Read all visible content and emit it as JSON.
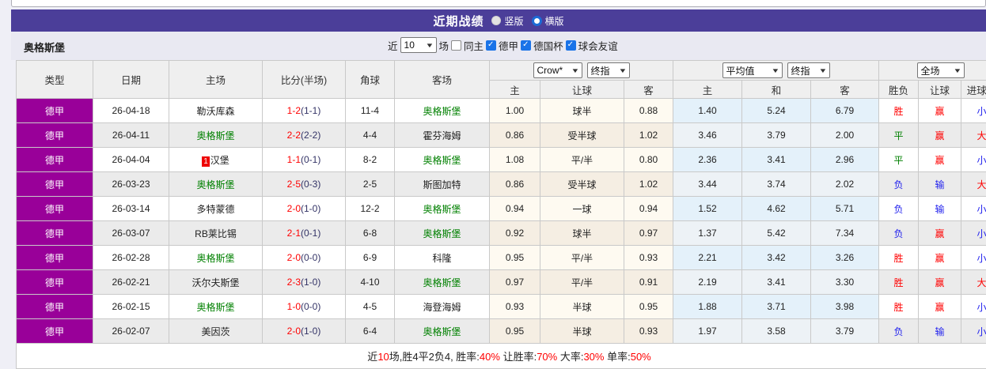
{
  "colors": {
    "bar_purple": "#4B3E99",
    "type_magenta": "#990099",
    "focus_green": "#008000",
    "win_red": "#FF0000",
    "loss_blue": "#2222EE",
    "band_lavender": "#E9E9F2"
  },
  "header": {
    "title": "近期战绩",
    "radio_vertical": "竖版",
    "radio_horizontal": "横版",
    "selected": "横版"
  },
  "filter": {
    "team": "奥格斯堡",
    "near_label": "近",
    "matches_value": "10",
    "matches_unit": "场",
    "same_home_label": "同主",
    "same_home_checked": false,
    "leagues": [
      {
        "label": "德甲",
        "checked": true
      },
      {
        "label": "德国杯",
        "checked": true
      },
      {
        "label": "球会友谊",
        "checked": true
      }
    ]
  },
  "table": {
    "main_headers": [
      "类型",
      "日期",
      "主场",
      "比分(半场)",
      "角球",
      "客场"
    ],
    "selects": {
      "company": "Crow*",
      "final1": "终指",
      "average": "平均值",
      "final2": "终指",
      "scope": "全场"
    },
    "sub_headers": [
      "主",
      "让球",
      "客",
      "主",
      "和",
      "客",
      "胜负",
      "让球",
      "进球数"
    ],
    "rows": [
      {
        "league": "德甲",
        "date": "26-04-18",
        "home": "勒沃库森",
        "home_badge": "",
        "score": "1-2",
        "half": "(1-1)",
        "corner": "11-4",
        "away": "奥格斯堡",
        "away_badge": "",
        "odds": [
          "1.00",
          "球半",
          "0.88"
        ],
        "avg": [
          "1.40",
          "5.24",
          "6.79"
        ],
        "result": [
          "胜",
          "赢",
          "小"
        ]
      },
      {
        "league": "德甲",
        "date": "26-04-11",
        "home": "奥格斯堡",
        "home_badge": "",
        "score": "2-2",
        "half": "(2-2)",
        "corner": "4-4",
        "away": "霍芬海姆",
        "away_badge": "",
        "odds": [
          "0.86",
          "受半球",
          "1.02"
        ],
        "avg": [
          "3.46",
          "3.79",
          "2.00"
        ],
        "result": [
          "平",
          "赢",
          "大"
        ]
      },
      {
        "league": "德甲",
        "date": "26-04-04",
        "home": "汉堡",
        "home_badge": "1",
        "score": "1-1",
        "half": "(0-1)",
        "corner": "8-2",
        "away": "奥格斯堡",
        "away_badge": "",
        "odds": [
          "1.08",
          "平/半",
          "0.80"
        ],
        "avg": [
          "2.36",
          "3.41",
          "2.96"
        ],
        "result": [
          "平",
          "赢",
          "小"
        ]
      },
      {
        "league": "德甲",
        "date": "26-03-23",
        "home": "奥格斯堡",
        "home_badge": "",
        "score": "2-5",
        "half": "(0-3)",
        "corner": "2-5",
        "away": "斯图加特",
        "away_badge": "",
        "odds": [
          "0.86",
          "受半球",
          "1.02"
        ],
        "avg": [
          "3.44",
          "3.74",
          "2.02"
        ],
        "result": [
          "负",
          "输",
          "大"
        ]
      },
      {
        "league": "德甲",
        "date": "26-03-14",
        "home": "多特蒙德",
        "home_badge": "",
        "score": "2-0",
        "half": "(1-0)",
        "corner": "12-2",
        "away": "奥格斯堡",
        "away_badge": "",
        "odds": [
          "0.94",
          "一球",
          "0.94"
        ],
        "avg": [
          "1.52",
          "4.62",
          "5.71"
        ],
        "result": [
          "负",
          "输",
          "小"
        ]
      },
      {
        "league": "德甲",
        "date": "26-03-07",
        "home": "RB莱比锡",
        "home_badge": "",
        "score": "2-1",
        "half": "(0-1)",
        "corner": "6-8",
        "away": "奥格斯堡",
        "away_badge": "",
        "odds": [
          "0.92",
          "球半",
          "0.97"
        ],
        "avg": [
          "1.37",
          "5.42",
          "7.34"
        ],
        "result": [
          "负",
          "赢",
          "小"
        ]
      },
      {
        "league": "德甲",
        "date": "26-02-28",
        "home": "奥格斯堡",
        "home_badge": "",
        "score": "2-0",
        "half": "(0-0)",
        "corner": "6-9",
        "away": "科隆",
        "away_badge": "",
        "odds": [
          "0.95",
          "平/半",
          "0.93"
        ],
        "avg": [
          "2.21",
          "3.42",
          "3.26"
        ],
        "result": [
          "胜",
          "赢",
          "小"
        ]
      },
      {
        "league": "德甲",
        "date": "26-02-21",
        "home": "沃尔夫斯堡",
        "home_badge": "",
        "score": "2-3",
        "half": "(1-0)",
        "corner": "4-10",
        "away": "奥格斯堡",
        "away_badge": "",
        "odds": [
          "0.97",
          "平/半",
          "0.91"
        ],
        "avg": [
          "2.19",
          "3.41",
          "3.30"
        ],
        "result": [
          "胜",
          "赢",
          "大"
        ]
      },
      {
        "league": "德甲",
        "date": "26-02-15",
        "home": "奥格斯堡",
        "home_badge": "",
        "score": "1-0",
        "half": "(0-0)",
        "corner": "4-5",
        "away": "海登海姆",
        "away_badge": "",
        "odds": [
          "0.93",
          "半球",
          "0.95"
        ],
        "avg": [
          "1.88",
          "3.71",
          "3.98"
        ],
        "result": [
          "胜",
          "赢",
          "小"
        ]
      },
      {
        "league": "德甲",
        "date": "26-02-07",
        "home": "美因茨",
        "home_badge": "",
        "score": "2-0",
        "half": "(1-0)",
        "corner": "6-4",
        "away": "奥格斯堡",
        "away_badge": "",
        "odds": [
          "0.95",
          "半球",
          "0.93"
        ],
        "avg": [
          "1.97",
          "3.58",
          "3.79"
        ],
        "result": [
          "负",
          "输",
          "小"
        ]
      }
    ],
    "footer_segments": [
      {
        "text": "近",
        "red": false
      },
      {
        "text": "10",
        "red": true
      },
      {
        "text": "场,胜4平2负4, 胜率:",
        "red": false
      },
      {
        "text": "40%",
        "red": true
      },
      {
        "text": " 让胜率:",
        "red": false
      },
      {
        "text": "70%",
        "red": true
      },
      {
        "text": " 大率:",
        "red": false
      },
      {
        "text": "30%",
        "red": true
      },
      {
        "text": " 单率:",
        "red": false
      },
      {
        "text": "50%",
        "red": true
      }
    ]
  }
}
